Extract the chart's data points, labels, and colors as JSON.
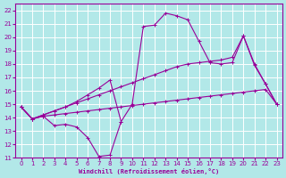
{
  "xlabel": "Windchill (Refroidissement éolien,°C)",
  "bg_color": "#b2e8e8",
  "grid_color": "#ffffff",
  "line_color": "#990099",
  "x_ticks": [
    0,
    1,
    2,
    3,
    4,
    5,
    6,
    7,
    8,
    9,
    10,
    11,
    12,
    13,
    14,
    15,
    16,
    17,
    18,
    19,
    20,
    21,
    22,
    23
  ],
  "y_ticks": [
    11,
    12,
    13,
    14,
    15,
    16,
    17,
    18,
    19,
    20,
    21,
    22
  ],
  "xlim": [
    -0.5,
    23.5
  ],
  "ylim": [
    11,
    22.5
  ],
  "curves": [
    {
      "x": [
        0,
        1,
        2,
        3,
        4,
        5,
        6,
        7,
        8,
        9
      ],
      "y": [
        14.8,
        13.9,
        14.1,
        13.4,
        13.5,
        13.3,
        12.5,
        11.1,
        11.2,
        13.7
      ]
    },
    {
      "x": [
        0,
        1,
        2,
        3,
        4,
        5,
        6,
        7,
        8,
        9,
        10,
        11,
        12,
        13,
        14,
        15,
        16,
        17,
        18,
        19,
        20,
        21,
        22,
        23
      ],
      "y": [
        14.8,
        13.9,
        14.1,
        14.2,
        14.3,
        14.4,
        14.5,
        14.6,
        14.7,
        14.8,
        14.9,
        15.0,
        15.1,
        15.2,
        15.3,
        15.4,
        15.5,
        15.6,
        15.7,
        15.8,
        15.9,
        16.0,
        16.1,
        15.0
      ]
    },
    {
      "x": [
        0,
        1,
        2,
        3,
        4,
        5,
        6,
        7,
        8,
        9,
        10,
        11,
        12,
        13,
        14,
        15,
        16,
        17,
        18,
        19,
        20,
        21,
        22,
        23
      ],
      "y": [
        14.8,
        13.9,
        14.2,
        14.5,
        14.8,
        15.1,
        15.4,
        15.7,
        16.0,
        16.3,
        16.6,
        16.9,
        17.2,
        17.5,
        17.8,
        18.0,
        18.1,
        18.2,
        18.3,
        18.5,
        20.1,
        18.0,
        16.5,
        15.0
      ]
    },
    {
      "x": [
        0,
        1,
        2,
        3,
        4,
        5,
        6,
        7,
        8,
        9,
        10,
        11,
        12,
        13,
        14,
        15,
        16,
        17,
        18,
        19,
        20,
        21,
        22,
        23
      ],
      "y": [
        14.8,
        13.9,
        14.2,
        14.5,
        14.8,
        15.2,
        15.7,
        16.2,
        16.8,
        13.7,
        15.0,
        20.8,
        20.9,
        21.8,
        21.6,
        21.3,
        19.7,
        18.1,
        18.0,
        18.1,
        20.1,
        17.9,
        16.5,
        15.0
      ]
    }
  ]
}
